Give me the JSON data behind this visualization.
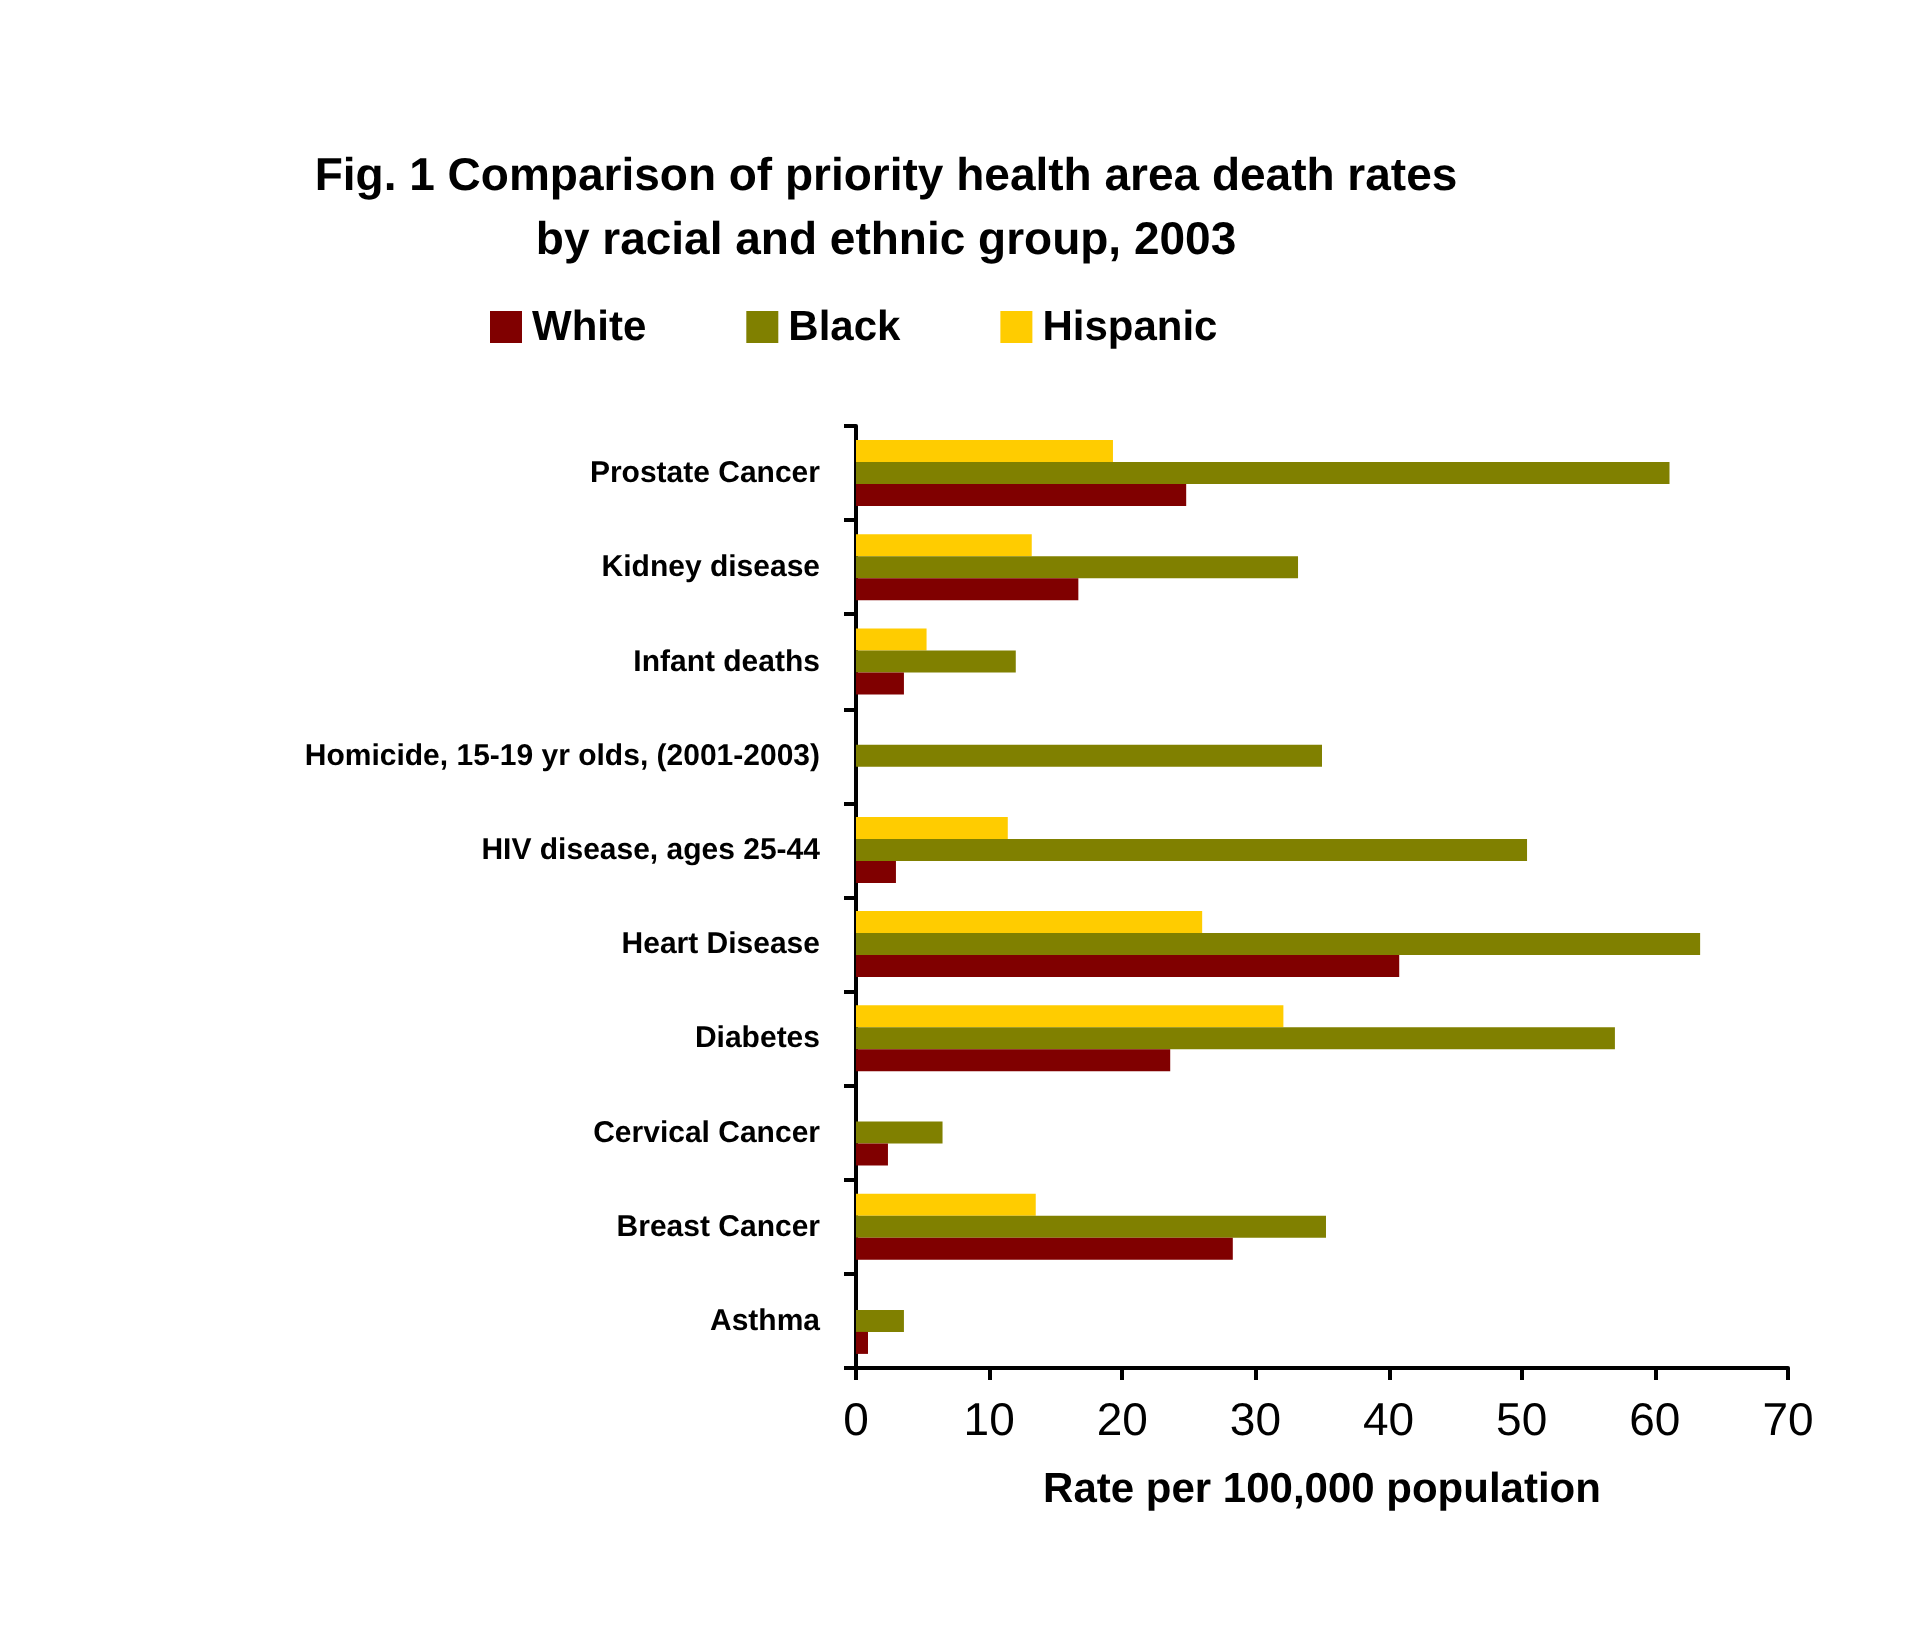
{
  "chart_data": {
    "type": "bar",
    "orientation": "horizontal",
    "title": "Fig. 1 Comparison of priority health area death rates\nby racial and ethnic group, 2003",
    "xlabel": "Rate per 100,000 population",
    "categories": [
      "Prostate Cancer",
      "Kidney disease",
      "Infant deaths",
      "Homicide, 15-19 yr olds, (2001-2003)",
      "HIV disease, ages 25-44",
      "Heart Disease",
      "Diabetes",
      "Cervical Cancer",
      "Breast Cancer",
      "Asthma"
    ],
    "series": [
      {
        "name": "White",
        "color": "#800000",
        "values": [
          24.8,
          16.7,
          3.6,
          null,
          3.0,
          40.8,
          23.6,
          2.4,
          28.3,
          0.9
        ]
      },
      {
        "name": "Black",
        "color": "#808000",
        "values": [
          61.1,
          33.2,
          12.0,
          35.0,
          50.4,
          63.4,
          57.0,
          6.5,
          35.3,
          3.6
        ]
      },
      {
        "name": "Hispanic",
        "color": "#ffcc00",
        "values": [
          19.3,
          13.2,
          5.3,
          null,
          11.4,
          26.0,
          32.1,
          null,
          13.5,
          null
        ]
      }
    ],
    "xlim": [
      0,
      70
    ],
    "xticks": [
      0,
      10,
      20,
      30,
      40,
      50,
      60,
      70
    ],
    "grid": false,
    "legend": "top"
  }
}
